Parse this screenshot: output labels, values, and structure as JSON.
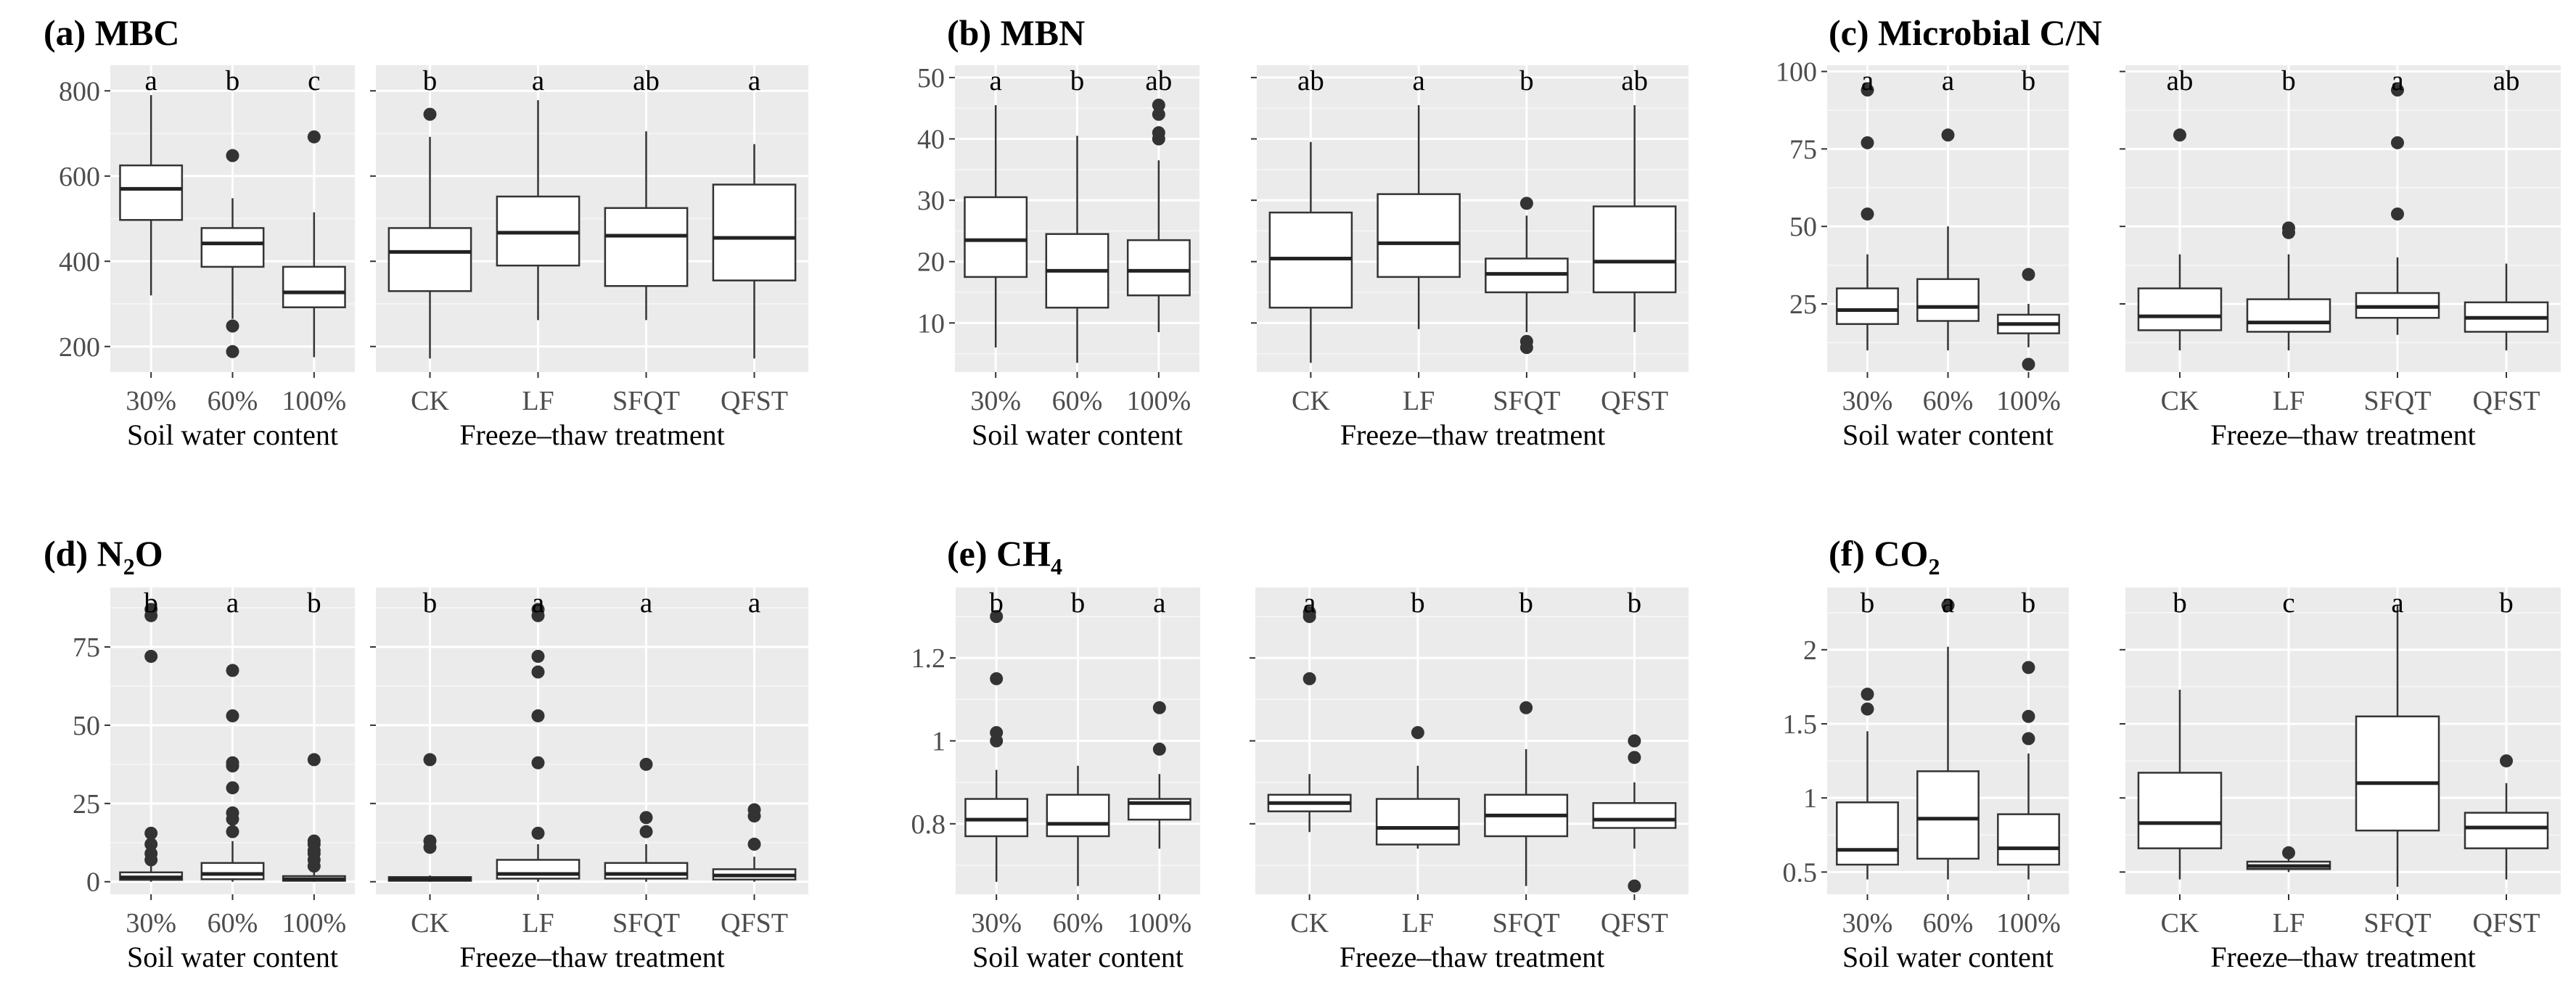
{
  "chart_data": [
    {
      "type": "box",
      "title_prefix": "(a) MBC",
      "title_main": "",
      "title_sub": "",
      "ylim": [
        140,
        860
      ],
      "yticks": [
        200,
        400,
        600,
        800
      ],
      "facets": [
        {
          "xlabel": "Soil water content",
          "boxes": [
            {
              "label": "30%",
              "min": 320,
              "q1": 497,
              "median": 570,
              "q3": 625,
              "max": 790,
              "outliers": [],
              "letter": "a"
            },
            {
              "label": "60%",
              "min": 265,
              "q1": 387,
              "median": 442,
              "q3": 478,
              "max": 548,
              "outliers": [
                648,
                248,
                188
              ],
              "letter": "b"
            },
            {
              "label": "100%",
              "min": 175,
              "q1": 292,
              "median": 327,
              "q3": 387,
              "max": 515,
              "outliers": [
                692
              ],
              "letter": "c"
            }
          ]
        },
        {
          "xlabel": "Freeze–thaw treatment",
          "boxes": [
            {
              "label": "CK",
              "min": 172,
              "q1": 330,
              "median": 422,
              "q3": 478,
              "max": 692,
              "outliers": [
                745
              ],
              "letter": "b"
            },
            {
              "label": "LF",
              "min": 262,
              "q1": 390,
              "median": 467,
              "q3": 552,
              "max": 778,
              "outliers": [],
              "letter": "a"
            },
            {
              "label": "SFQT",
              "min": 262,
              "q1": 342,
              "median": 460,
              "q3": 525,
              "max": 705,
              "outliers": [],
              "letter": "ab"
            },
            {
              "label": "QFST",
              "min": 172,
              "q1": 355,
              "median": 455,
              "q3": 580,
              "max": 675,
              "outliers": [],
              "letter": "a"
            }
          ]
        }
      ]
    },
    {
      "type": "box",
      "title_prefix": "(b) MBN",
      "title_main": "",
      "title_sub": "",
      "ylim": [
        2,
        52
      ],
      "yticks": [
        10,
        20,
        30,
        40,
        50
      ],
      "facets": [
        {
          "xlabel": "Soil water content",
          "boxes": [
            {
              "label": "30%",
              "min": 6,
              "q1": 17.5,
              "median": 23.5,
              "q3": 30.5,
              "max": 45.5,
              "outliers": [],
              "letter": "a"
            },
            {
              "label": "60%",
              "min": 3.5,
              "q1": 12.5,
              "median": 18.5,
              "q3": 24.5,
              "max": 40.5,
              "outliers": [],
              "letter": "b"
            },
            {
              "label": "100%",
              "min": 8.5,
              "q1": 14.5,
              "median": 18.5,
              "q3": 23.5,
              "max": 36.5,
              "outliers": [
                40,
                41,
                44,
                45.5
              ],
              "letter": "ab"
            }
          ]
        },
        {
          "xlabel": "Freeze–thaw treatment",
          "boxes": [
            {
              "label": "CK",
              "min": 3.5,
              "q1": 12.5,
              "median": 20.5,
              "q3": 28,
              "max": 39.5,
              "outliers": [],
              "letter": "ab"
            },
            {
              "label": "LF",
              "min": 9,
              "q1": 17.5,
              "median": 23,
              "q3": 31,
              "max": 45.5,
              "outliers": [],
              "letter": "a"
            },
            {
              "label": "SFQT",
              "min": 8.5,
              "q1": 15,
              "median": 18,
              "q3": 20.5,
              "max": 27.5,
              "outliers": [
                29.5,
                7,
                6
              ],
              "letter": "b"
            },
            {
              "label": "QFST",
              "min": 8.5,
              "q1": 15,
              "median": 20,
              "q3": 29,
              "max": 45.5,
              "outliers": [],
              "letter": "ab"
            }
          ]
        }
      ]
    },
    {
      "type": "box",
      "title_prefix": "(c) Microbial C/N",
      "title_main": "",
      "title_sub": "",
      "ylim": [
        3,
        102
      ],
      "yticks": [
        25,
        50,
        75,
        100
      ],
      "facets": [
        {
          "xlabel": "Soil water content",
          "boxes": [
            {
              "label": "30%",
              "min": 10,
              "q1": 18.5,
              "median": 23,
              "q3": 30,
              "max": 41,
              "outliers": [
                54,
                77,
                94
              ],
              "letter": "a"
            },
            {
              "label": "60%",
              "min": 10,
              "q1": 19.5,
              "median": 24,
              "q3": 33,
              "max": 50,
              "outliers": [
                79.5
              ],
              "letter": "a"
            },
            {
              "label": "100%",
              "min": 11,
              "q1": 15.5,
              "median": 18.5,
              "q3": 21.5,
              "max": 25,
              "outliers": [
                34.5,
                5.5
              ],
              "letter": "b"
            }
          ]
        },
        {
          "xlabel": "Freeze–thaw treatment",
          "boxes": [
            {
              "label": "CK",
              "min": 10,
              "q1": 16.5,
              "median": 21,
              "q3": 30,
              "max": 41,
              "outliers": [
                79.5
              ],
              "letter": "ab"
            },
            {
              "label": "LF",
              "min": 10,
              "q1": 16,
              "median": 19,
              "q3": 26.5,
              "max": 41,
              "outliers": [
                48,
                49.5
              ],
              "letter": "b"
            },
            {
              "label": "SFQT",
              "min": 15,
              "q1": 20.5,
              "median": 24,
              "q3": 28.5,
              "max": 40,
              "outliers": [
                54,
                77,
                94
              ],
              "letter": "a"
            },
            {
              "label": "QFST",
              "min": 10,
              "q1": 16,
              "median": 20.5,
              "q3": 25.5,
              "max": 38,
              "outliers": [],
              "letter": "ab"
            }
          ]
        }
      ]
    },
    {
      "type": "box",
      "title_prefix": "(d) N",
      "title_main": "",
      "title_sub": "2",
      "title_suffix": "O",
      "ylim": [
        -4,
        94
      ],
      "yticks": [
        0,
        25,
        50,
        75
      ],
      "facets": [
        {
          "xlabel": "Soil water content",
          "boxes": [
            {
              "label": "30%",
              "min": 0,
              "q1": 0.6,
              "median": 1.4,
              "q3": 3,
              "max": 5,
              "outliers": [
                7,
                9,
                12,
                15.5,
                72,
                85,
                87
              ],
              "letter": "b"
            },
            {
              "label": "60%",
              "min": 0,
              "q1": 0.8,
              "median": 2.5,
              "q3": 6,
              "max": 13,
              "outliers": [
                16,
                20,
                22,
                30,
                37,
                38,
                53,
                67.5
              ],
              "letter": "a"
            },
            {
              "label": "100%",
              "min": 0,
              "q1": 0.3,
              "median": 0.8,
              "q3": 1.8,
              "max": 3,
              "outliers": [
                5,
                7,
                9,
                10,
                12,
                13,
                39
              ],
              "letter": "b"
            }
          ]
        },
        {
          "xlabel": "Freeze–thaw treatment",
          "boxes": [
            {
              "label": "CK",
              "min": 0,
              "q1": 0.3,
              "median": 0.8,
              "q3": 1.5,
              "max": 2,
              "outliers": [
                11,
                13,
                39
              ],
              "letter": "b"
            },
            {
              "label": "LF",
              "min": 0,
              "q1": 1,
              "median": 2.5,
              "q3": 7,
              "max": 12,
              "outliers": [
                15.5,
                38,
                53,
                67,
                72,
                85,
                87
              ],
              "letter": "a"
            },
            {
              "label": "SFQT",
              "min": 0,
              "q1": 1,
              "median": 2.5,
              "q3": 6,
              "max": 12,
              "outliers": [
                16,
                20.5,
                37.5
              ],
              "letter": "a"
            },
            {
              "label": "QFST",
              "min": 0,
              "q1": 0.7,
              "median": 2,
              "q3": 4,
              "max": 8,
              "outliers": [
                12,
                21,
                23
              ],
              "letter": "a"
            }
          ]
        }
      ]
    },
    {
      "type": "box",
      "title_prefix": "(e) CH",
      "title_main": "",
      "title_sub": "4",
      "title_suffix": "",
      "ylim": [
        0.63,
        1.37
      ],
      "yticks": [
        0.8,
        1.0,
        1.2
      ],
      "facets": [
        {
          "xlabel": "Soil water content",
          "boxes": [
            {
              "label": "30%",
              "min": 0.66,
              "q1": 0.77,
              "median": 0.81,
              "q3": 0.86,
              "max": 0.93,
              "outliers": [
                1.0,
                1.02,
                1.15,
                1.3
              ],
              "letter": "b"
            },
            {
              "label": "60%",
              "min": 0.65,
              "q1": 0.77,
              "median": 0.8,
              "q3": 0.87,
              "max": 0.94,
              "outliers": [],
              "letter": "b"
            },
            {
              "label": "100%",
              "min": 0.74,
              "q1": 0.81,
              "median": 0.85,
              "q3": 0.86,
              "max": 0.92,
              "outliers": [
                0.98,
                1.08
              ],
              "letter": "a"
            }
          ]
        },
        {
          "xlabel": "Freeze–thaw treatment",
          "boxes": [
            {
              "label": "CK",
              "min": 0.78,
              "q1": 0.83,
              "median": 0.85,
              "q3": 0.87,
              "max": 0.92,
              "outliers": [
                1.15,
                1.3,
                1.31
              ],
              "letter": "a"
            },
            {
              "label": "LF",
              "min": 0.74,
              "q1": 0.75,
              "median": 0.79,
              "q3": 0.86,
              "max": 0.94,
              "outliers": [
                1.02
              ],
              "letter": "b"
            },
            {
              "label": "SFQT",
              "min": 0.65,
              "q1": 0.77,
              "median": 0.82,
              "q3": 0.87,
              "max": 0.98,
              "outliers": [
                1.08
              ],
              "letter": "b"
            },
            {
              "label": "QFST",
              "min": 0.74,
              "q1": 0.79,
              "median": 0.81,
              "q3": 0.85,
              "max": 0.9,
              "outliers": [
                0.96,
                1.0,
                0.65
              ],
              "letter": "b"
            }
          ]
        }
      ]
    },
    {
      "type": "box",
      "title_prefix": "(f) CO",
      "title_main": "",
      "title_sub": "2",
      "title_suffix": "",
      "ylim": [
        0.35,
        2.42
      ],
      "yticks": [
        0.5,
        1.0,
        1.5,
        2.0
      ],
      "facets": [
        {
          "xlabel": "Soil water content",
          "boxes": [
            {
              "label": "30%",
              "min": 0.45,
              "q1": 0.55,
              "median": 0.65,
              "q3": 0.97,
              "max": 1.45,
              "outliers": [
                1.6,
                1.7
              ],
              "letter": "b"
            },
            {
              "label": "60%",
              "min": 0.45,
              "q1": 0.59,
              "median": 0.86,
              "q3": 1.18,
              "max": 2.02,
              "outliers": [
                2.3
              ],
              "letter": "a"
            },
            {
              "label": "100%",
              "min": 0.45,
              "q1": 0.55,
              "median": 0.66,
              "q3": 0.89,
              "max": 1.3,
              "outliers": [
                1.4,
                1.55,
                1.88
              ],
              "letter": "b"
            }
          ]
        },
        {
          "xlabel": "Freeze–thaw treatment",
          "boxes": [
            {
              "label": "CK",
              "min": 0.45,
              "q1": 0.66,
              "median": 0.83,
              "q3": 1.17,
              "max": 1.73,
              "outliers": [],
              "letter": "b"
            },
            {
              "label": "LF",
              "min": 0.5,
              "q1": 0.52,
              "median": 0.54,
              "q3": 0.57,
              "max": 0.6,
              "outliers": [
                0.63
              ],
              "letter": "c"
            },
            {
              "label": "SFQT",
              "min": 0.4,
              "q1": 0.78,
              "median": 1.1,
              "q3": 1.55,
              "max": 2.3,
              "outliers": [],
              "letter": "a"
            },
            {
              "label": "QFST",
              "min": 0.45,
              "q1": 0.66,
              "median": 0.8,
              "q3": 0.9,
              "max": 1.1,
              "outliers": [
                1.25
              ],
              "letter": "b"
            }
          ]
        }
      ]
    }
  ]
}
